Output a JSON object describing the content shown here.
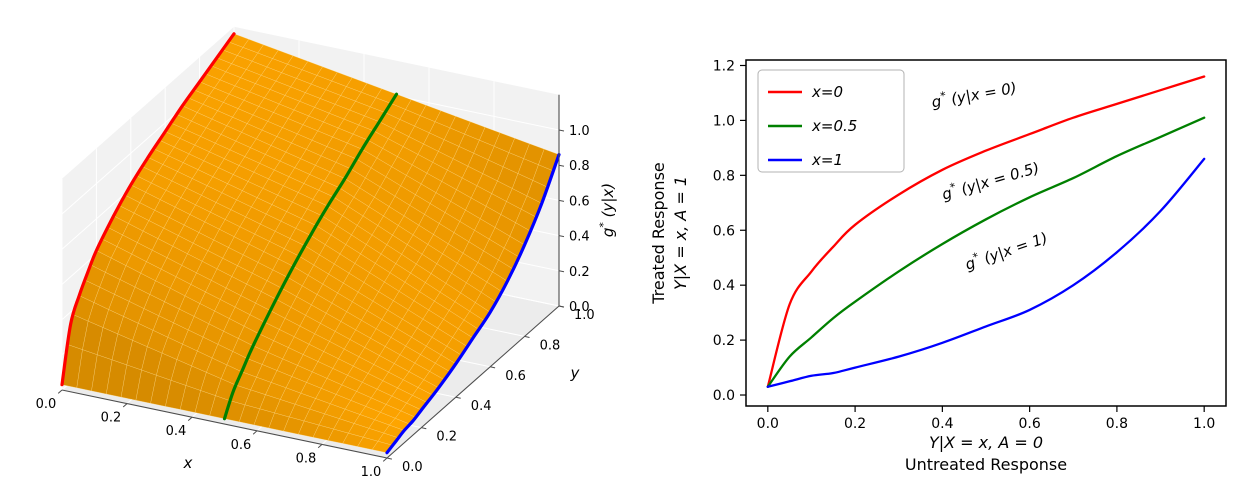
{
  "figure": {
    "background_color": "#ffffff"
  },
  "chart_data": [
    {
      "type": "surface",
      "xlabel": "x",
      "ylabel": "y",
      "zlabel_parts": {
        "base": "g",
        "sup": "*",
        "rest": " (y|x)"
      },
      "xlim": [
        0,
        1
      ],
      "ylim": [
        0,
        1
      ],
      "zlim": [
        0,
        1.2
      ],
      "x_ticks": {
        "values": [
          0,
          0.2,
          0.4,
          0.6,
          0.8,
          1.0
        ],
        "labels": [
          "0.0",
          "0.2",
          "0.4",
          "0.6",
          "0.8",
          "1.0"
        ]
      },
      "y_ticks": {
        "values": [
          0,
          0.2,
          0.4,
          0.6,
          0.8,
          1.0
        ],
        "labels": [
          "0.0",
          "0.2",
          "0.4",
          "0.6",
          "0.8",
          "1.0"
        ]
      },
      "z_ticks": {
        "values": [
          0,
          0.2,
          0.4,
          0.6,
          0.8,
          1.0
        ],
        "labels": [
          "0.0",
          "0.2",
          "0.4",
          "0.6",
          "0.8",
          "1.0"
        ]
      },
      "surface_color": "#ffa500",
      "pane_color": "#f2f2f2",
      "floor_color": "#ececec",
      "pane_grid_color": "#ffffff",
      "y_samples": [
        0,
        0.05,
        0.1,
        0.15,
        0.2,
        0.3,
        0.4,
        0.5,
        0.6,
        0.7,
        0.8,
        0.9,
        1.0
      ],
      "slices": [
        {
          "x": 0,
          "label": "x=0",
          "color": "#ff0000",
          "z": [
            0.03,
            0.33,
            0.45,
            0.54,
            0.62,
            0.73,
            0.82,
            0.89,
            0.95,
            1.01,
            1.06,
            1.11,
            1.16
          ]
        },
        {
          "x": 0.5,
          "label": "x=0.5",
          "color": "#008000",
          "z": [
            0.03,
            0.14,
            0.21,
            0.28,
            0.34,
            0.45,
            0.55,
            0.64,
            0.72,
            0.79,
            0.87,
            0.94,
            1.01
          ]
        },
        {
          "x": 1,
          "label": "x=1",
          "color": "#0000ff",
          "z": [
            0.03,
            0.05,
            0.07,
            0.08,
            0.1,
            0.14,
            0.19,
            0.25,
            0.31,
            0.4,
            0.52,
            0.67,
            0.86
          ]
        }
      ]
    },
    {
      "type": "line",
      "xlabel_math": "Y|X = x, A = 0",
      "xlabel_text": "Untreated Response",
      "ylabel_text": "Treated Response",
      "ylabel_math": "Y|X = x, A = 1",
      "xlim": [
        -0.05,
        1.05
      ],
      "ylim": [
        -0.04,
        1.22
      ],
      "grid": false,
      "legend_location": "upper left",
      "x_ticks": {
        "values": [
          0,
          0.2,
          0.4,
          0.6,
          0.8,
          1.0
        ],
        "labels": [
          "0.0",
          "0.2",
          "0.4",
          "0.6",
          "0.8",
          "1.0"
        ]
      },
      "y_ticks": {
        "values": [
          0,
          0.2,
          0.4,
          0.6,
          0.8,
          1.0,
          1.2
        ],
        "labels": [
          "0.0",
          "0.2",
          "0.4",
          "0.6",
          "0.8",
          "1.0",
          "1.2"
        ]
      },
      "x": [
        0,
        0.05,
        0.1,
        0.15,
        0.2,
        0.3,
        0.4,
        0.5,
        0.6,
        0.7,
        0.8,
        0.9,
        1.0
      ],
      "series": [
        {
          "name": "x=0",
          "color": "#ff0000",
          "values": [
            0.03,
            0.33,
            0.45,
            0.54,
            0.62,
            0.73,
            0.82,
            0.89,
            0.95,
            1.01,
            1.06,
            1.11,
            1.16
          ],
          "annotation": {
            "base": "g",
            "sup": "*",
            "rest": " (y|x = 0)"
          }
        },
        {
          "name": "x=0.5",
          "color": "#008000",
          "values": [
            0.03,
            0.14,
            0.21,
            0.28,
            0.34,
            0.45,
            0.55,
            0.64,
            0.72,
            0.79,
            0.87,
            0.94,
            1.01
          ],
          "annotation": {
            "base": "g",
            "sup": "*",
            "rest": " (y|x = 0.5)"
          }
        },
        {
          "name": "x=1",
          "color": "#0000ff",
          "values": [
            0.03,
            0.05,
            0.07,
            0.08,
            0.1,
            0.14,
            0.19,
            0.25,
            0.31,
            0.4,
            0.52,
            0.67,
            0.86
          ],
          "annotation": {
            "base": "g",
            "sup": "*",
            "rest": " (y|x = 1)"
          }
        }
      ]
    }
  ]
}
